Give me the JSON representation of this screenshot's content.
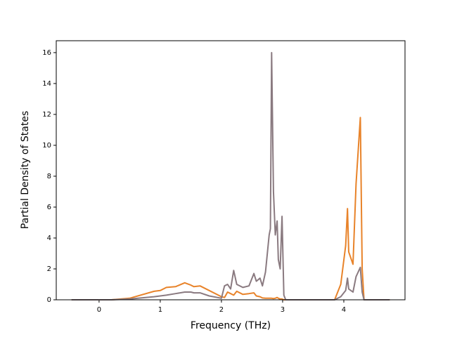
{
  "chart_data": {
    "type": "line",
    "xlabel": "Frequency (THz)",
    "ylabel": "Partial Density of States",
    "x": [
      -0.45,
      0.2,
      0.5,
      0.9,
      1.0,
      1.1,
      1.25,
      1.4,
      1.5,
      1.55,
      1.65,
      1.8,
      2.0,
      2.05,
      2.1,
      2.15,
      2.2,
      2.25,
      2.35,
      2.45,
      2.53,
      2.57,
      2.63,
      2.67,
      2.72,
      2.78,
      2.8,
      2.82,
      2.85,
      2.88,
      2.91,
      2.93,
      2.96,
      2.99,
      3.02,
      3.05,
      3.85,
      3.95,
      4.03,
      4.06,
      4.08,
      4.15,
      4.2,
      4.27,
      4.3,
      4.33,
      4.75
    ],
    "series": [
      {
        "color": "#e8832a",
        "values": [
          0,
          0,
          0.1,
          0.55,
          0.6,
          0.8,
          0.85,
          1.1,
          0.95,
          0.85,
          0.9,
          0.6,
          0.2,
          0.15,
          0.5,
          0.4,
          0.3,
          0.55,
          0.35,
          0.4,
          0.45,
          0.25,
          0.2,
          0.12,
          0.1,
          0.1,
          0.1,
          0.1,
          0.08,
          0.1,
          0.15,
          0.1,
          0.05,
          0.05,
          0,
          0,
          0,
          1.0,
          3.5,
          5.9,
          3.1,
          2.3,
          7.5,
          11.8,
          2.0,
          0,
          0
        ]
      },
      {
        "color": "#8a7a80",
        "values": [
          0,
          0,
          0.05,
          0.2,
          0.25,
          0.3,
          0.4,
          0.5,
          0.5,
          0.45,
          0.45,
          0.25,
          0.1,
          0.9,
          1.0,
          0.7,
          1.9,
          1.0,
          0.8,
          0.9,
          1.7,
          1.2,
          1.4,
          0.9,
          1.8,
          4.2,
          4.6,
          16.0,
          7.0,
          4.2,
          5.1,
          2.6,
          2.0,
          5.4,
          0.3,
          0,
          0,
          0.2,
          0.6,
          1.4,
          0.7,
          0.5,
          1.5,
          2.1,
          0.5,
          0,
          0
        ]
      }
    ],
    "xlim": [
      -0.7,
      5.0
    ],
    "ylim": [
      0,
      16.77
    ],
    "xticks": [
      0,
      1,
      2,
      3,
      4
    ],
    "yticks": [
      0,
      2,
      4,
      6,
      8,
      10,
      12,
      14,
      16
    ]
  }
}
